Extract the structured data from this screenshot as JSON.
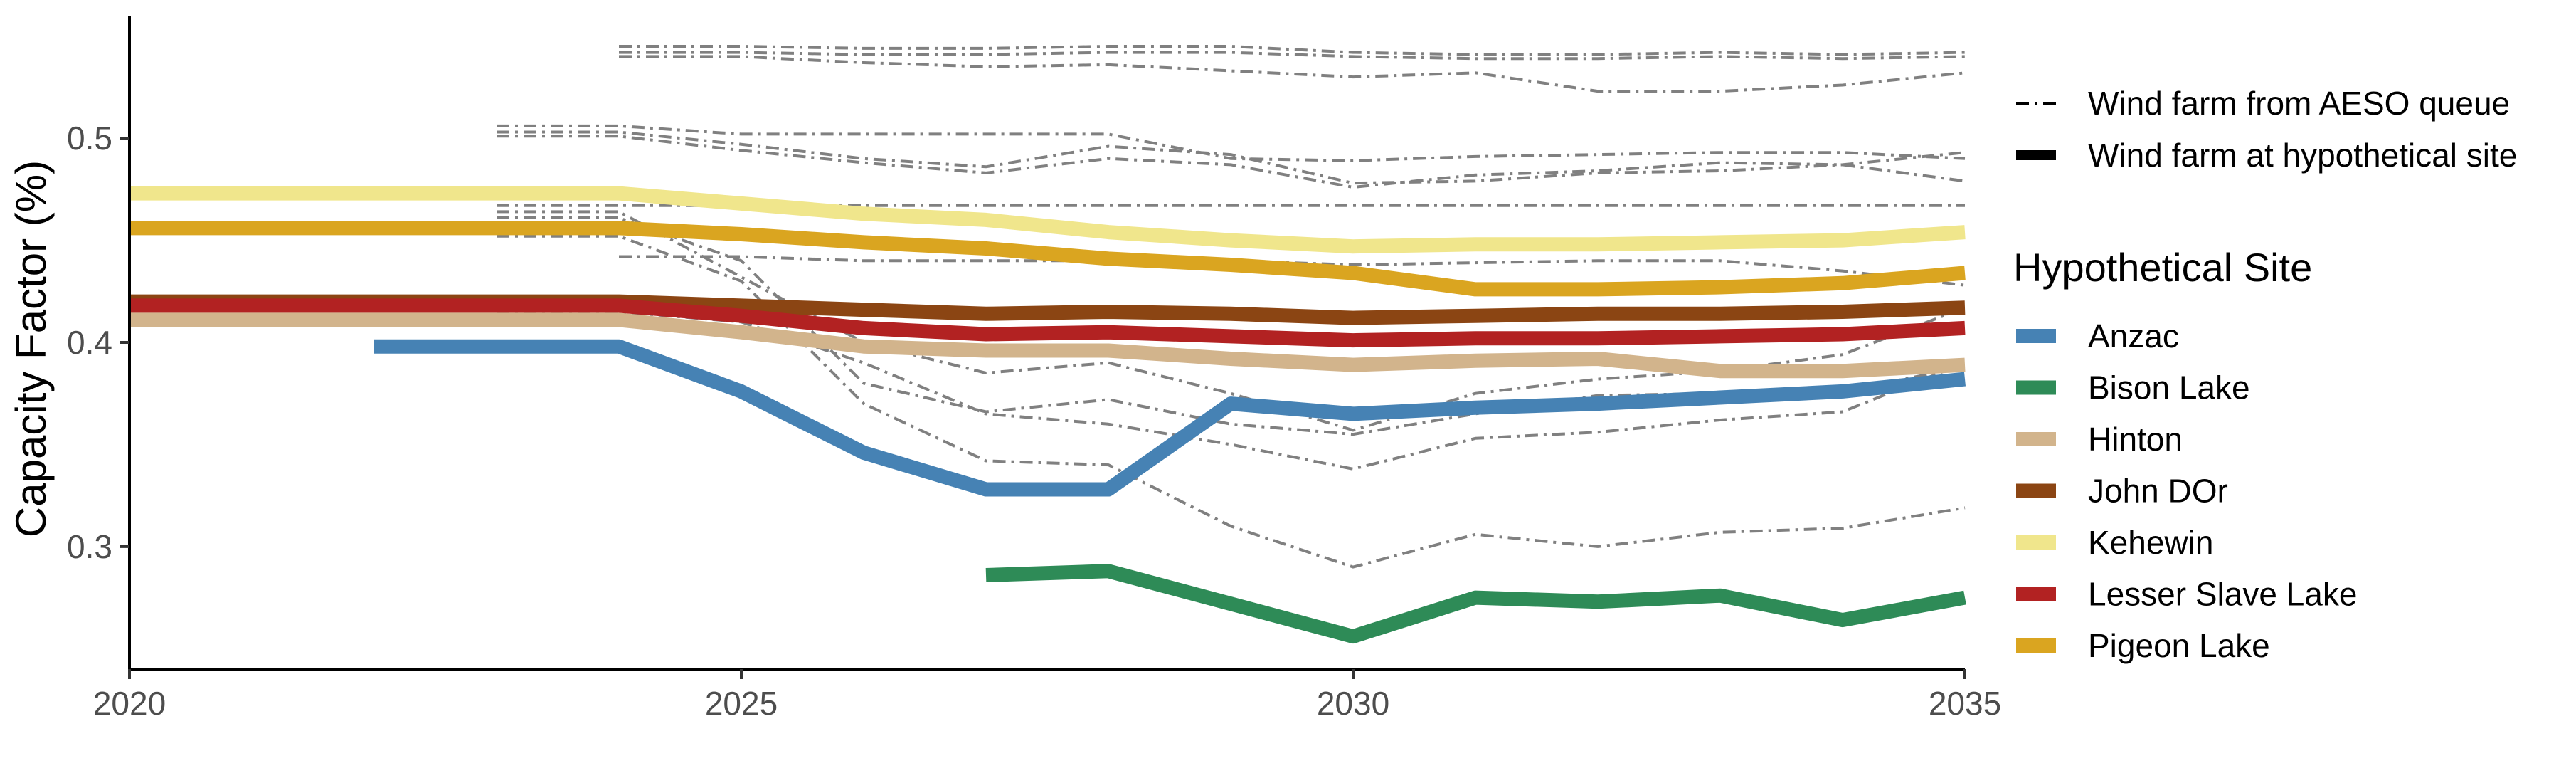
{
  "chart_data": {
    "type": "line",
    "title": "",
    "xlabel": "",
    "ylabel": "Capacity Factor (%)",
    "xlim": [
      2020,
      2035
    ],
    "ylim": [
      0.24,
      0.56
    ],
    "x_ticks": [
      2020,
      2025,
      2030,
      2035
    ],
    "x_tick_labels": [
      "2020",
      "2025",
      "2030",
      "2035"
    ],
    "y_ticks": [
      0.3,
      0.4,
      0.5
    ],
    "y_tick_labels": [
      "0.3",
      "0.4",
      "0.5"
    ],
    "grid": false,
    "legend_position": "right",
    "linetype_legend": [
      {
        "label": "Wind farm from AESO queue",
        "style": "dashdot"
      },
      {
        "label": "Wind farm at hypothetical site",
        "style": "solid"
      }
    ],
    "color_legend_title": "Hypothetical Site",
    "series": [
      {
        "name": "Anzac",
        "color": "#4682B4",
        "x": [
          2022,
          2024,
          2025,
          2026,
          2027,
          2028,
          2029,
          2030,
          2031,
          2032,
          2033,
          2034,
          2035
        ],
        "y": [
          0.398,
          0.398,
          0.376,
          0.346,
          0.328,
          0.328,
          0.37,
          0.365,
          0.368,
          0.37,
          0.373,
          0.376,
          0.382
        ]
      },
      {
        "name": "Bison Lake",
        "color": "#2E8B57",
        "x": [
          2027,
          2028,
          2029,
          2030,
          2031,
          2032,
          2033,
          2034,
          2035
        ],
        "y": [
          0.286,
          0.288,
          0.272,
          0.256,
          0.275,
          0.273,
          0.276,
          0.264,
          0.275
        ]
      },
      {
        "name": "Hinton",
        "color": "#D2B48C",
        "x": [
          2020,
          2024,
          2025,
          2026,
          2027,
          2028,
          2029,
          2030,
          2031,
          2032,
          2033,
          2034,
          2035
        ],
        "y": [
          0.411,
          0.411,
          0.405,
          0.398,
          0.396,
          0.396,
          0.392,
          0.389,
          0.391,
          0.392,
          0.386,
          0.386,
          0.389
        ]
      },
      {
        "name": "John DOr",
        "color": "#8B4513",
        "x": [
          2020,
          2024,
          2025,
          2026,
          2027,
          2028,
          2029,
          2030,
          2031,
          2032,
          2033,
          2034,
          2035
        ],
        "y": [
          0.42,
          0.42,
          0.418,
          0.416,
          0.414,
          0.415,
          0.414,
          0.412,
          0.413,
          0.414,
          0.414,
          0.415,
          0.417
        ]
      },
      {
        "name": "Kehewin",
        "color": "#F0E68C",
        "x": [
          2020,
          2024,
          2025,
          2026,
          2027,
          2028,
          2029,
          2030,
          2031,
          2032,
          2033,
          2034,
          2035
        ],
        "y": [
          0.473,
          0.473,
          0.468,
          0.463,
          0.46,
          0.454,
          0.45,
          0.447,
          0.448,
          0.448,
          0.449,
          0.45,
          0.454
        ]
      },
      {
        "name": "Lesser Slave Lake",
        "color": "#B22222",
        "x": [
          2020,
          2024,
          2025,
          2026,
          2027,
          2028,
          2029,
          2030,
          2031,
          2032,
          2033,
          2034,
          2035
        ],
        "y": [
          0.418,
          0.418,
          0.413,
          0.407,
          0.404,
          0.405,
          0.403,
          0.401,
          0.402,
          0.402,
          0.403,
          0.404,
          0.407
        ]
      },
      {
        "name": "Pigeon Lake",
        "color": "#DAA520",
        "x": [
          2020,
          2024,
          2025,
          2026,
          2027,
          2028,
          2029,
          2030,
          2031,
          2032,
          2033,
          2034,
          2035
        ],
        "y": [
          0.456,
          0.456,
          0.453,
          0.449,
          0.446,
          0.441,
          0.438,
          0.434,
          0.426,
          0.426,
          0.427,
          0.429,
          0.434
        ]
      }
    ],
    "queue_series": [
      {
        "color": "#808080",
        "x": [
          2024,
          2025,
          2026,
          2027,
          2028,
          2029,
          2030,
          2031,
          2032,
          2033,
          2034,
          2035
        ],
        "y": [
          0.545,
          0.545,
          0.544,
          0.544,
          0.545,
          0.545,
          0.542,
          0.541,
          0.541,
          0.542,
          0.541,
          0.542
        ]
      },
      {
        "color": "#808080",
        "x": [
          2024,
          2025,
          2026,
          2027,
          2028,
          2029,
          2030,
          2031,
          2032,
          2033,
          2034,
          2035
        ],
        "y": [
          0.542,
          0.542,
          0.541,
          0.541,
          0.542,
          0.542,
          0.54,
          0.539,
          0.539,
          0.54,
          0.539,
          0.54
        ]
      },
      {
        "color": "#808080",
        "x": [
          2024,
          2025,
          2026,
          2027,
          2028,
          2029,
          2030,
          2031,
          2032,
          2033,
          2034,
          2035
        ],
        "y": [
          0.54,
          0.54,
          0.537,
          0.535,
          0.536,
          0.533,
          0.53,
          0.532,
          0.523,
          0.523,
          0.526,
          0.532
        ]
      },
      {
        "color": "#808080",
        "x": [
          2023,
          2024,
          2025,
          2026,
          2027,
          2028,
          2029,
          2030,
          2031,
          2032,
          2033,
          2034,
          2035
        ],
        "y": [
          0.506,
          0.506,
          0.502,
          0.502,
          0.502,
          0.502,
          0.49,
          0.489,
          0.491,
          0.492,
          0.493,
          0.493,
          0.49
        ]
      },
      {
        "color": "#808080",
        "x": [
          2023,
          2024,
          2025,
          2026,
          2027,
          2028,
          2029,
          2030,
          2031,
          2032,
          2033,
          2034,
          2035
        ],
        "y": [
          0.503,
          0.503,
          0.497,
          0.49,
          0.486,
          0.496,
          0.492,
          0.478,
          0.479,
          0.483,
          0.484,
          0.487,
          0.493
        ]
      },
      {
        "color": "#808080",
        "x": [
          2023,
          2024,
          2025,
          2026,
          2027,
          2028,
          2029,
          2030,
          2031,
          2032,
          2033,
          2034,
          2035
        ],
        "y": [
          0.501,
          0.501,
          0.494,
          0.488,
          0.483,
          0.49,
          0.487,
          0.476,
          0.482,
          0.484,
          0.488,
          0.487,
          0.479
        ]
      },
      {
        "color": "#808080",
        "x": [
          2023,
          2024,
          2025,
          2026,
          2027,
          2028,
          2029,
          2030,
          2031,
          2032,
          2033,
          2034,
          2035
        ],
        "y": [
          0.467,
          0.467,
          0.467,
          0.467,
          0.467,
          0.467,
          0.467,
          0.467,
          0.467,
          0.467,
          0.467,
          0.467,
          0.467
        ]
      },
      {
        "color": "#808080",
        "x": [
          2023,
          2024,
          2025,
          2026,
          2027,
          2028,
          2029,
          2030,
          2031,
          2032,
          2033,
          2034,
          2035
        ],
        "y": [
          0.464,
          0.464,
          0.432,
          0.4,
          0.385,
          0.39,
          0.375,
          0.357,
          0.375,
          0.382,
          0.386,
          0.394,
          0.417
        ]
      },
      {
        "color": "#808080",
        "x": [
          2023,
          2024,
          2025,
          2026,
          2027,
          2028,
          2029,
          2030,
          2031,
          2032,
          2033,
          2034,
          2035
        ],
        "y": [
          0.461,
          0.461,
          0.44,
          0.38,
          0.366,
          0.372,
          0.36,
          0.355,
          0.365,
          0.374,
          0.375,
          0.376,
          0.388
        ]
      },
      {
        "color": "#808080",
        "x": [
          2023,
          2024,
          2025,
          2026,
          2027,
          2028,
          2029,
          2030,
          2031,
          2032,
          2033,
          2034,
          2035
        ],
        "y": [
          0.452,
          0.452,
          0.43,
          0.37,
          0.342,
          0.34,
          0.31,
          0.29,
          0.306,
          0.3,
          0.307,
          0.309,
          0.319
        ]
      },
      {
        "color": "#808080",
        "x": [
          2024,
          2025,
          2026,
          2027,
          2028,
          2029,
          2030,
          2031,
          2032,
          2033,
          2034,
          2035
        ],
        "y": [
          0.442,
          0.442,
          0.44,
          0.44,
          0.44,
          0.44,
          0.438,
          0.439,
          0.44,
          0.44,
          0.435,
          0.428
        ]
      },
      {
        "color": "#808080",
        "x": [
          2023,
          2024,
          2025,
          2026,
          2027,
          2028,
          2029,
          2030,
          2031,
          2032,
          2033,
          2034,
          2035
        ],
        "y": [
          0.415,
          0.415,
          0.41,
          0.39,
          0.365,
          0.36,
          0.35,
          0.338,
          0.353,
          0.356,
          0.362,
          0.366,
          0.39
        ]
      }
    ]
  }
}
